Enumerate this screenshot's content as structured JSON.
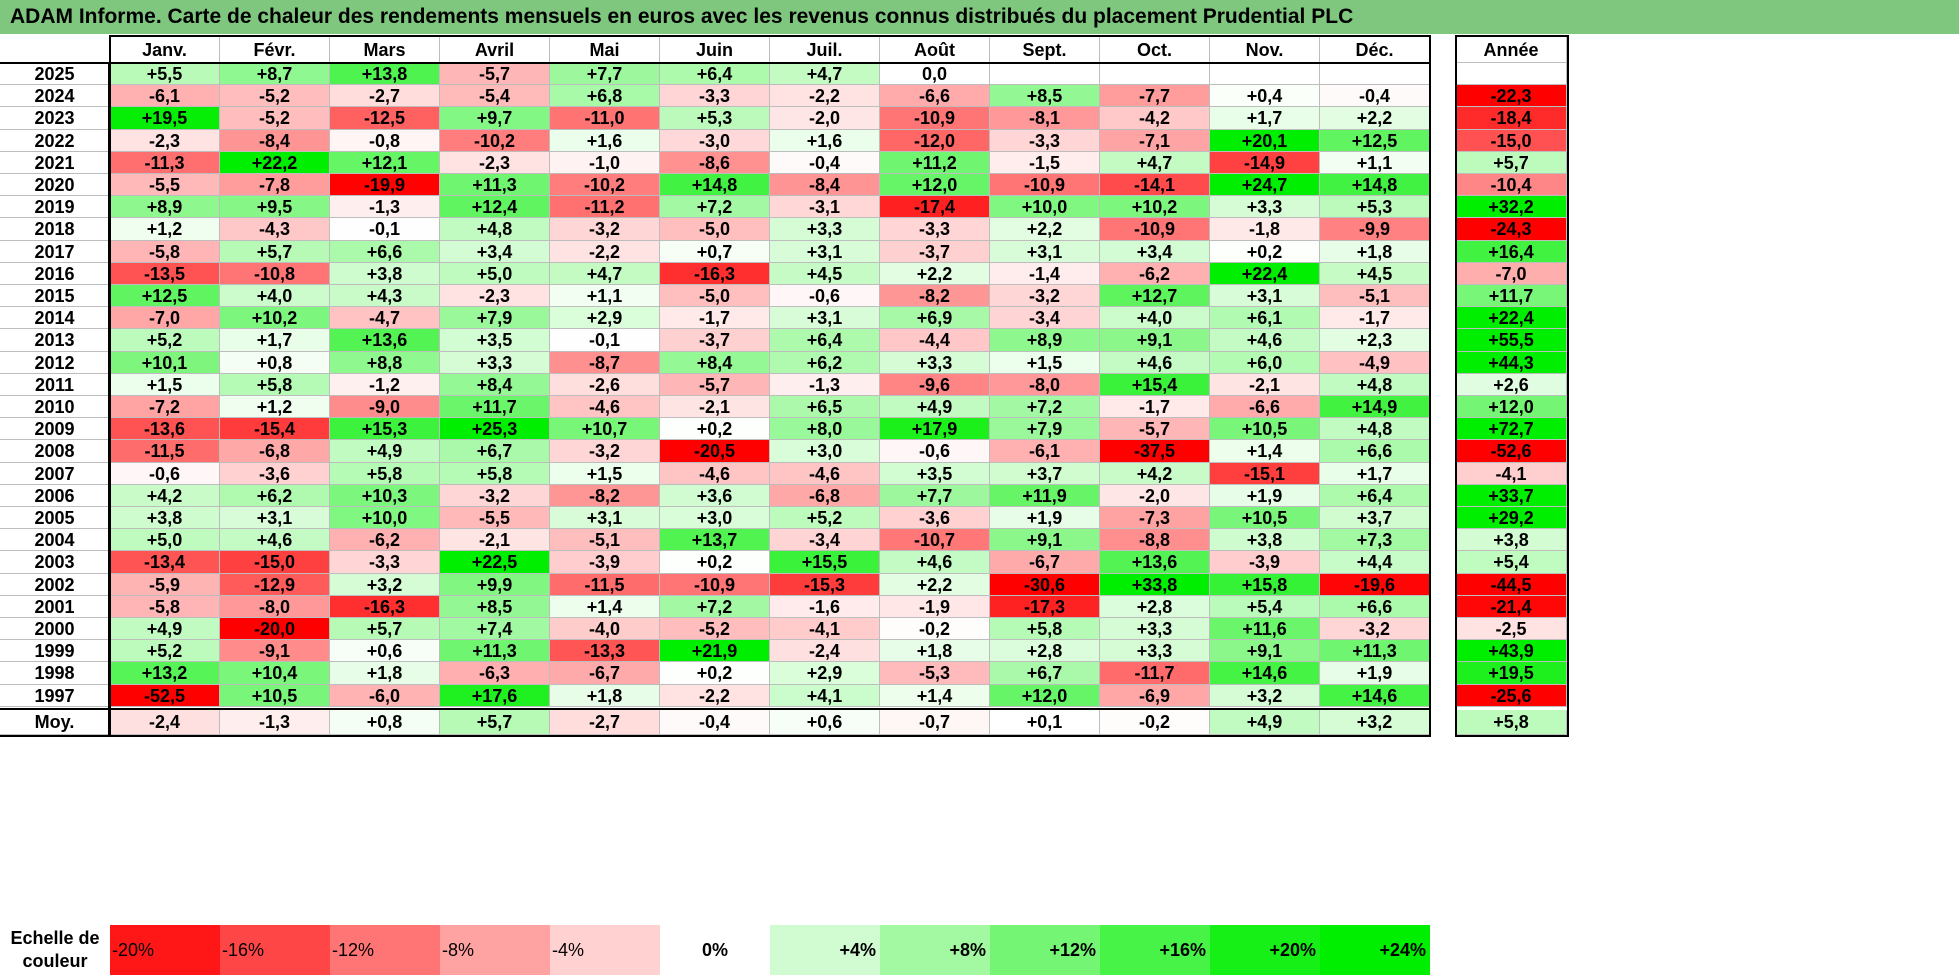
{
  "title": "ADAM Informe. Carte de chaleur des rendements mensuels en euros avec les revenus connus distribués du placement Prudential PLC",
  "chart_data": {
    "type": "heatmap",
    "title": "ADAM Informe. Carte de chaleur des rendements mensuels en euros avec les revenus connus distribués du placement Prudential PLC",
    "columns": [
      "Janv.",
      "Févr.",
      "Mars",
      "Avril",
      "Mai",
      "Juin",
      "Juil.",
      "Août",
      "Sept.",
      "Oct.",
      "Nov.",
      "Déc."
    ],
    "annual_header": "Année",
    "rows": [
      {
        "year": "2025",
        "values": [
          "+5,5",
          "+8,7",
          "+13,8",
          "-5,7",
          "+7,7",
          "+6,4",
          "+4,7",
          "0,0",
          "",
          "",
          "",
          ""
        ],
        "annual": ""
      },
      {
        "year": "2024",
        "values": [
          "-6,1",
          "-5,2",
          "-2,7",
          "-5,4",
          "+6,8",
          "-3,3",
          "-2,2",
          "-6,6",
          "+8,5",
          "-7,7",
          "+0,4",
          "-0,4"
        ],
        "annual": "-22,3"
      },
      {
        "year": "2023",
        "values": [
          "+19,5",
          "-5,2",
          "-12,5",
          "+9,7",
          "-11,0",
          "+5,3",
          "-2,0",
          "-10,9",
          "-8,1",
          "-4,2",
          "+1,7",
          "+2,2"
        ],
        "annual": "-18,4"
      },
      {
        "year": "2022",
        "values": [
          "-2,3",
          "-8,4",
          "-0,8",
          "-10,2",
          "+1,6",
          "-3,0",
          "+1,6",
          "-12,0",
          "-3,3",
          "-7,1",
          "+20,1",
          "+12,5"
        ],
        "annual": "-15,0"
      },
      {
        "year": "2021",
        "values": [
          "-11,3",
          "+22,2",
          "+12,1",
          "-2,3",
          "-1,0",
          "-8,6",
          "-0,4",
          "+11,2",
          "-1,5",
          "+4,7",
          "-14,9",
          "+1,1"
        ],
        "annual": "+5,7"
      },
      {
        "year": "2020",
        "values": [
          "-5,5",
          "-7,8",
          "-19,9",
          "+11,3",
          "-10,2",
          "+14,8",
          "-8,4",
          "+12,0",
          "-10,9",
          "-14,1",
          "+24,7",
          "+14,8"
        ],
        "annual": "-10,4"
      },
      {
        "year": "2019",
        "values": [
          "+8,9",
          "+9,5",
          "-1,3",
          "+12,4",
          "-11,2",
          "+7,2",
          "-3,1",
          "-17,4",
          "+10,0",
          "+10,2",
          "+3,3",
          "+5,3"
        ],
        "annual": "+32,2"
      },
      {
        "year": "2018",
        "values": [
          "+1,2",
          "-4,3",
          "-0,1",
          "+4,8",
          "-3,2",
          "-5,0",
          "+3,3",
          "-3,3",
          "+2,2",
          "-10,9",
          "-1,8",
          "-9,9"
        ],
        "annual": "-24,3"
      },
      {
        "year": "2017",
        "values": [
          "-5,8",
          "+5,7",
          "+6,6",
          "+3,4",
          "-2,2",
          "+0,7",
          "+3,1",
          "-3,7",
          "+3,1",
          "+3,4",
          "+0,2",
          "+1,8"
        ],
        "annual": "+16,4"
      },
      {
        "year": "2016",
        "values": [
          "-13,5",
          "-10,8",
          "+3,8",
          "+5,0",
          "+4,7",
          "-16,3",
          "+4,5",
          "+2,2",
          "-1,4",
          "-6,2",
          "+22,4",
          "+4,5"
        ],
        "annual": "-7,0"
      },
      {
        "year": "2015",
        "values": [
          "+12,5",
          "+4,0",
          "+4,3",
          "-2,3",
          "+1,1",
          "-5,0",
          "-0,6",
          "-8,2",
          "-3,2",
          "+12,7",
          "+3,1",
          "-5,1"
        ],
        "annual": "+11,7"
      },
      {
        "year": "2014",
        "values": [
          "-7,0",
          "+10,2",
          "-4,7",
          "+7,9",
          "+2,9",
          "-1,7",
          "+3,1",
          "+6,9",
          "-3,4",
          "+4,0",
          "+6,1",
          "-1,7"
        ],
        "annual": "+22,4"
      },
      {
        "year": "2013",
        "values": [
          "+5,2",
          "+1,7",
          "+13,6",
          "+3,5",
          "-0,1",
          "-3,7",
          "+6,4",
          "-4,4",
          "+8,9",
          "+9,1",
          "+4,6",
          "+2,3"
        ],
        "annual": "+55,5"
      },
      {
        "year": "2012",
        "values": [
          "+10,1",
          "+0,8",
          "+8,8",
          "+3,3",
          "-8,7",
          "+8,4",
          "+6,2",
          "+3,3",
          "+1,5",
          "+4,6",
          "+6,0",
          "-4,9"
        ],
        "annual": "+44,3"
      },
      {
        "year": "2011",
        "values": [
          "+1,5",
          "+5,8",
          "-1,2",
          "+8,4",
          "-2,6",
          "-5,7",
          "-1,3",
          "-9,6",
          "-8,0",
          "+15,4",
          "-2,1",
          "+4,8"
        ],
        "annual": "+2,6"
      },
      {
        "year": "2010",
        "values": [
          "-7,2",
          "+1,2",
          "-9,0",
          "+11,7",
          "-4,6",
          "-2,1",
          "+6,5",
          "+4,9",
          "+7,2",
          "-1,7",
          "-6,6",
          "+14,9"
        ],
        "annual": "+12,0"
      },
      {
        "year": "2009",
        "values": [
          "-13,6",
          "-15,4",
          "+15,3",
          "+25,3",
          "+10,7",
          "+0,2",
          "+8,0",
          "+17,9",
          "+7,9",
          "-5,7",
          "+10,5",
          "+4,8"
        ],
        "annual": "+72,7"
      },
      {
        "year": "2008",
        "values": [
          "-11,5",
          "-6,8",
          "+4,9",
          "+6,7",
          "-3,2",
          "-20,5",
          "+3,0",
          "-0,6",
          "-6,1",
          "-37,5",
          "+1,4",
          "+6,6"
        ],
        "annual": "-52,6"
      },
      {
        "year": "2007",
        "values": [
          "-0,6",
          "-3,6",
          "+5,8",
          "+5,8",
          "+1,5",
          "-4,6",
          "-4,6",
          "+3,5",
          "+3,7",
          "+4,2",
          "-15,1",
          "+1,7"
        ],
        "annual": "-4,1"
      },
      {
        "year": "2006",
        "values": [
          "+4,2",
          "+6,2",
          "+10,3",
          "-3,2",
          "-8,2",
          "+3,6",
          "-6,8",
          "+7,7",
          "+11,9",
          "-2,0",
          "+1,9",
          "+6,4"
        ],
        "annual": "+33,7"
      },
      {
        "year": "2005",
        "values": [
          "+3,8",
          "+3,1",
          "+10,0",
          "-5,5",
          "+3,1",
          "+3,0",
          "+5,2",
          "-3,6",
          "+1,9",
          "-7,3",
          "+10,5",
          "+3,7"
        ],
        "annual": "+29,2"
      },
      {
        "year": "2004",
        "values": [
          "+5,0",
          "+4,6",
          "-6,2",
          "-2,1",
          "-5,1",
          "+13,7",
          "-3,4",
          "-10,7",
          "+9,1",
          "-8,8",
          "+3,8",
          "+7,3"
        ],
        "annual": "+3,8"
      },
      {
        "year": "2003",
        "values": [
          "-13,4",
          "-15,0",
          "-3,3",
          "+22,5",
          "-3,9",
          "+0,2",
          "+15,5",
          "+4,6",
          "-6,7",
          "+13,6",
          "-3,9",
          "+4,4"
        ],
        "annual": "+5,4"
      },
      {
        "year": "2002",
        "values": [
          "-5,9",
          "-12,9",
          "+3,2",
          "+9,9",
          "-11,5",
          "-10,9",
          "-15,3",
          "+2,2",
          "-30,6",
          "+33,8",
          "+15,8",
          "-19,6"
        ],
        "annual": "-44,5"
      },
      {
        "year": "2001",
        "values": [
          "-5,8",
          "-8,0",
          "-16,3",
          "+8,5",
          "+1,4",
          "+7,2",
          "-1,6",
          "-1,9",
          "-17,3",
          "+2,8",
          "+5,4",
          "+6,6"
        ],
        "annual": "-21,4"
      },
      {
        "year": "2000",
        "values": [
          "+4,9",
          "-20,0",
          "+5,7",
          "+7,4",
          "-4,0",
          "-5,2",
          "-4,1",
          "-0,2",
          "+5,8",
          "+3,3",
          "+11,6",
          "-3,2"
        ],
        "annual": "-2,5"
      },
      {
        "year": "1999",
        "values": [
          "+5,2",
          "-9,1",
          "+0,6",
          "+11,3",
          "-13,3",
          "+21,9",
          "-2,4",
          "+1,8",
          "+2,8",
          "+3,3",
          "+9,1",
          "+11,3"
        ],
        "annual": "+43,9"
      },
      {
        "year": "1998",
        "values": [
          "+13,2",
          "+10,4",
          "+1,8",
          "-6,3",
          "-6,7",
          "+0,2",
          "+2,9",
          "-5,3",
          "+6,7",
          "-11,7",
          "+14,6",
          "+1,9"
        ],
        "annual": "+19,5"
      },
      {
        "year": "1997",
        "values": [
          "-52,5",
          "+10,5",
          "-6,0",
          "+17,6",
          "+1,8",
          "-2,2",
          "+4,1",
          "+1,4",
          "+12,0",
          "-6,9",
          "+3,2",
          "+14,6"
        ],
        "annual": "-25,6"
      }
    ],
    "average": {
      "label": "Moy.",
      "values": [
        "-2,4",
        "-1,3",
        "+0,8",
        "+5,7",
        "-2,7",
        "-0,4",
        "+0,6",
        "-0,7",
        "+0,1",
        "-0,2",
        "+4,9",
        "+3,2"
      ],
      "annual": "+5,8"
    },
    "scale": {
      "label_line1": "Echelle de",
      "label_line2": "couleur",
      "steps": [
        "-20%",
        "-16%",
        "-12%",
        "-8%",
        "-4%",
        "0%",
        "+4%",
        "+8%",
        "+12%",
        "+16%",
        "+20%",
        "+24%"
      ]
    },
    "colors": {
      "max_red": "#ff0000",
      "neutral": "#ffffff",
      "max_green": "#00ee00",
      "title_bg": "#7fc77f"
    }
  }
}
